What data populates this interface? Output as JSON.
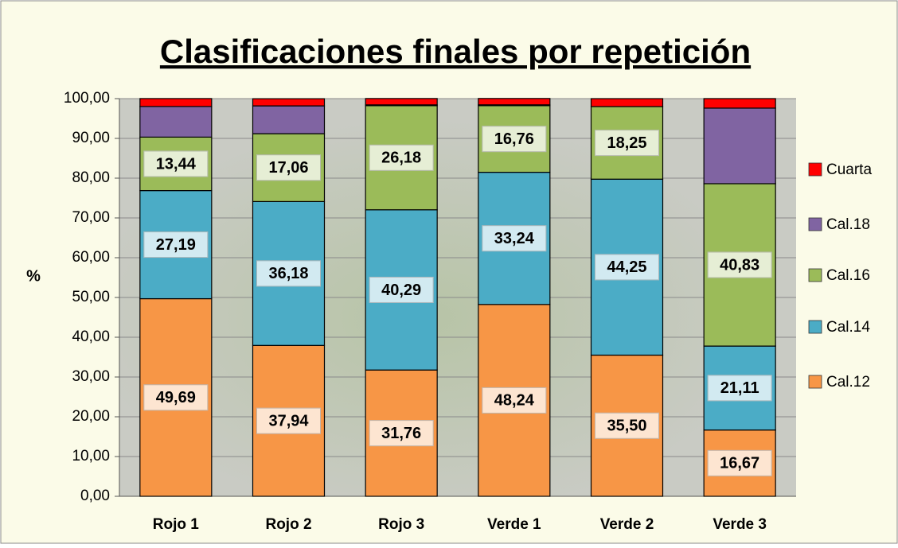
{
  "chart_data": {
    "type": "stacked_bar",
    "title": "Clasificaciones finales por repetición",
    "y_label": "%",
    "categories": [
      "Rojo 1",
      "Rojo 2",
      "Rojo 3",
      "Verde 1",
      "Verde 2",
      "Verde 3"
    ],
    "series": [
      {
        "name": "Cal.12",
        "color": "#f79646",
        "values": [
          49.69,
          37.94,
          31.76,
          48.24,
          35.5,
          16.67
        ],
        "value_labels": [
          "49,69",
          "37,94",
          "31,76",
          "48,24",
          "35,50",
          "16,67"
        ]
      },
      {
        "name": "Cal.14",
        "color": "#4bacc6",
        "values": [
          27.19,
          36.18,
          40.29,
          33.24,
          44.25,
          21.11
        ],
        "value_labels": [
          "27,19",
          "36,18",
          "40,29",
          "33,24",
          "44,25",
          "21,11"
        ]
      },
      {
        "name": "Cal.16",
        "color": "#9bbb59",
        "values": [
          13.44,
          17.06,
          26.18,
          16.76,
          18.25,
          40.83
        ],
        "value_labels": [
          "13,44",
          "17,06",
          "26,18",
          "16,76",
          "18,25",
          "40,83"
        ]
      },
      {
        "name": "Cal.18",
        "color": "#8064a2",
        "values": [
          7.7,
          7.0,
          0.2,
          0.2,
          0,
          19.0
        ]
      },
      {
        "name": "Cuarta",
        "color": "#ff0000",
        "values": [
          2.0,
          1.8,
          1.6,
          1.6,
          2.0,
          2.4
        ]
      }
    ],
    "ylim": [
      0,
      100
    ],
    "yticks": [
      {
        "value": 0,
        "label": "0,00"
      },
      {
        "value": 10,
        "label": "10,00"
      },
      {
        "value": 20,
        "label": "20,00"
      },
      {
        "value": 30,
        "label": "30,00"
      },
      {
        "value": 40,
        "label": "40,00"
      },
      {
        "value": 50,
        "label": "50,00"
      },
      {
        "value": 60,
        "label": "60,00"
      },
      {
        "value": 70,
        "label": "70,00"
      },
      {
        "value": 80,
        "label": "80,00"
      },
      {
        "value": 90,
        "label": "90,00"
      },
      {
        "value": 100,
        "label": "100,00"
      }
    ],
    "grid": true,
    "legend": "right"
  }
}
